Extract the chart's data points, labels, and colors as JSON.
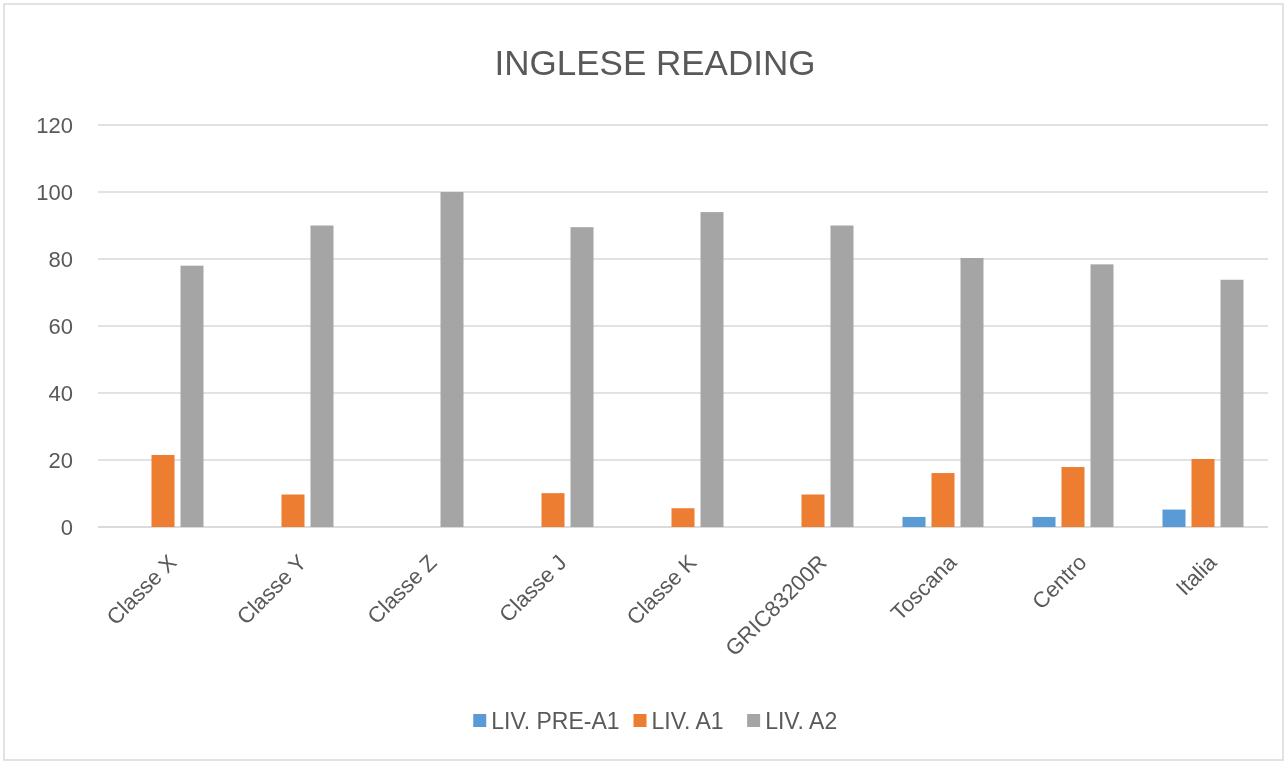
{
  "chart_data": {
    "type": "bar",
    "title": "INGLESE READING",
    "categories": [
      "Classe X",
      "Classe Y",
      "Classe Z",
      "Classe J",
      "Classe K",
      "GRIC83200R",
      "Toscana",
      "Centro",
      "Italia"
    ],
    "series": [
      {
        "name": "LIV. PRE-A1",
        "color": "#5b9bd5",
        "values": [
          0,
          0,
          0,
          0,
          0,
          0,
          3,
          3,
          5.2
        ]
      },
      {
        "name": "LIV. A1",
        "color": "#ed7d31",
        "values": [
          21.5,
          9.7,
          0,
          10.1,
          5.6,
          9.7,
          16.1,
          17.9,
          20.3
        ]
      },
      {
        "name": "LIV. A2",
        "color": "#a5a5a5",
        "values": [
          78,
          90,
          100,
          89.5,
          94,
          90,
          80.3,
          78.4,
          73.8
        ]
      }
    ],
    "ylim": [
      0,
      120
    ],
    "yticks": [
      0,
      20,
      40,
      60,
      80,
      100,
      120
    ],
    "grid": "y",
    "legend": "bottom"
  }
}
